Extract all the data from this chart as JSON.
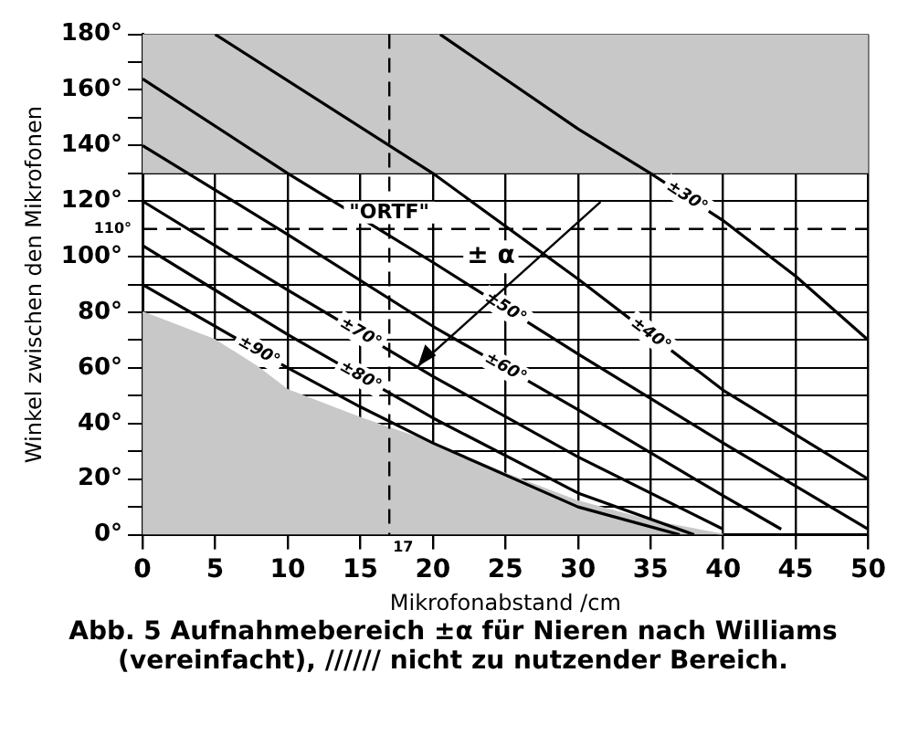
{
  "chart_data": {
    "type": "line",
    "xlabel": "Mikrofonabstand /cm",
    "ylabel": "Winkel zwischen den Mikrofonen",
    "xlim": [
      0,
      50
    ],
    "xticks": [
      0,
      5,
      10,
      15,
      20,
      25,
      30,
      35,
      40,
      45,
      50
    ],
    "ylim": [
      0,
      180
    ],
    "yticks": [
      {
        "value": 0,
        "label": "0°"
      },
      {
        "value": 10,
        "label": null
      },
      {
        "value": 20,
        "label": "20°"
      },
      {
        "value": 30,
        "label": null
      },
      {
        "value": 40,
        "label": "40°"
      },
      {
        "value": 50,
        "label": null
      },
      {
        "value": 60,
        "label": "60°"
      },
      {
        "value": 70,
        "label": null
      },
      {
        "value": 80,
        "label": "80°"
      },
      {
        "value": 90,
        "label": null
      },
      {
        "value": 100,
        "label": "100°"
      },
      {
        "value": 120,
        "label": "120°"
      },
      {
        "value": 130,
        "label": null
      },
      {
        "value": 140,
        "label": "140°"
      },
      {
        "value": 150,
        "label": null
      },
      {
        "value": 160,
        "label": "160°"
      },
      {
        "value": 170,
        "label": null
      },
      {
        "value": 180,
        "label": "180°"
      }
    ],
    "grid": true,
    "legend": false,
    "series": [
      {
        "type": "area",
        "color": "#c8c8c8",
        "x": [
          0,
          5,
          8,
          10,
          15,
          20,
          25,
          30,
          35,
          40
        ],
        "values": [
          80,
          70,
          60,
          52,
          42,
          33,
          22,
          12,
          5,
          0
        ]
      },
      {
        "name": "±30°",
        "color": "#000000",
        "x": [
          20.5,
          30,
          35,
          40,
          45,
          50
        ],
        "values": [
          180,
          146,
          130,
          113,
          93,
          70
        ]
      },
      {
        "name": "±40°",
        "color": "#000000",
        "x": [
          5,
          20,
          30,
          40,
          50
        ],
        "values": [
          180,
          130,
          92,
          52,
          20
        ]
      },
      {
        "name": "±50°",
        "color": "#000000",
        "x": [
          0,
          10,
          20,
          30,
          40,
          50
        ],
        "values": [
          164,
          130,
          98,
          65,
          33,
          2
        ]
      },
      {
        "name": "±60°",
        "color": "#000000",
        "x": [
          0,
          10,
          20,
          30,
          40,
          44
        ],
        "values": [
          140,
          108,
          75,
          45,
          14,
          2
        ]
      },
      {
        "name": "±70°",
        "color": "#000000",
        "x": [
          0,
          10,
          20,
          30,
          40
        ],
        "values": [
          120,
          88,
          57,
          28,
          2
        ]
      },
      {
        "name": "±80°",
        "color": "#000000",
        "x": [
          0,
          10,
          20,
          30,
          38
        ],
        "values": [
          104,
          72,
          42,
          15,
          0
        ]
      },
      {
        "name": "±90°",
        "color": "#000000",
        "x": [
          0,
          10,
          15,
          20,
          30,
          37
        ],
        "values": [
          90,
          60,
          46,
          33,
          10,
          0
        ]
      }
    ],
    "bands": [
      {
        "axis": "y",
        "from": 130,
        "to": 180,
        "color": "#c8c8c8"
      }
    ],
    "ref_lines": [
      {
        "axis": "y",
        "value": 110,
        "label": "110°",
        "line_style": "dashed"
      },
      {
        "axis": "x",
        "value": 17,
        "label": "17",
        "line_style": "dashed"
      }
    ],
    "annotations": [
      {
        "text": "\"ORTF\"",
        "x": 17,
        "y": 110
      },
      {
        "text": "± α",
        "x": 24,
        "y": 100
      },
      "Abb. 5 Aufnahmebereich ±α für Nieren nach Williams (vereinfacht), ////// nicht zu nutzender Bereich."
    ]
  }
}
